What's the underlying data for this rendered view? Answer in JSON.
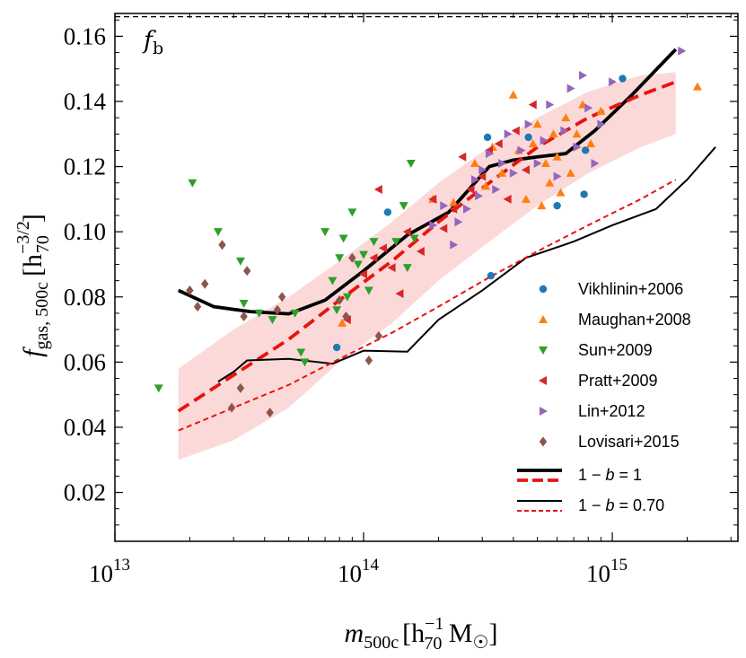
{
  "chart_data": {
    "type": "scatter",
    "xlabel": {
      "main": "m",
      "sub": "500c",
      "unit": "[h",
      "unit_exp": "−1",
      "unit_sub": "70",
      "unit_tail": " M",
      "sun": "☉",
      "close": "]"
    },
    "ylabel": {
      "main": "f",
      "sub": "gas, 500c",
      "unit": "[h",
      "unit_exp": "−3/2",
      "unit_sub": "70",
      "close": "]"
    },
    "x_scale": "log",
    "xlim": [
      10000000000000.0,
      3200000000000000.0
    ],
    "ylim": [
      0.005,
      0.167
    ],
    "x_ticks": [
      {
        "value": 10000000000000.0,
        "base": "10",
        "exp": "13"
      },
      {
        "value": 100000000000000.0,
        "base": "10",
        "exp": "14"
      },
      {
        "value": 1000000000000000.0,
        "base": "10",
        "exp": "15"
      }
    ],
    "y_ticks": [
      {
        "value": 0.02,
        "label": "0.02"
      },
      {
        "value": 0.04,
        "label": "0.04"
      },
      {
        "value": 0.06,
        "label": "0.06"
      },
      {
        "value": 0.08,
        "label": "0.08"
      },
      {
        "value": 0.1,
        "label": "0.10"
      },
      {
        "value": 0.12,
        "label": "0.12"
      },
      {
        "value": 0.14,
        "label": "0.14"
      },
      {
        "value": 0.16,
        "label": "0.16"
      }
    ],
    "baryon_fraction": {
      "value": 0.166,
      "label": "f",
      "label_sub": "b"
    },
    "band": {
      "color": "#fcd9d9",
      "upper": [
        [
          18000000000000.0,
          0.058
        ],
        [
          30000000000000.0,
          0.07
        ],
        [
          50000000000000.0,
          0.08
        ],
        [
          80000000000000.0,
          0.091
        ],
        [
          130000000000000.0,
          0.103
        ],
        [
          200000000000000.0,
          0.115
        ],
        [
          320000000000000.0,
          0.126
        ],
        [
          500000000000000.0,
          0.135
        ],
        [
          800000000000000.0,
          0.143
        ],
        [
          1300000000000000.0,
          0.148
        ],
        [
          1800000000000000.0,
          0.149
        ]
      ],
      "lower": [
        [
          18000000000000.0,
          0.03
        ],
        [
          30000000000000.0,
          0.036
        ],
        [
          50000000000000.0,
          0.046
        ],
        [
          80000000000000.0,
          0.06
        ],
        [
          130000000000000.0,
          0.072
        ],
        [
          200000000000000.0,
          0.085
        ],
        [
          320000000000000.0,
          0.097
        ],
        [
          500000000000000.0,
          0.108
        ],
        [
          800000000000000.0,
          0.118
        ],
        [
          1300000000000000.0,
          0.126
        ],
        [
          1800000000000000.0,
          0.13
        ]
      ]
    },
    "series": [
      {
        "name": "Vikhlinin+2006",
        "color": "#1f77b4",
        "marker": "circle",
        "points": [
          [
            78000000000000.0,
            0.0645
          ],
          [
            125000000000000.0,
            0.106
          ],
          [
            315000000000000.0,
            0.129
          ],
          [
            325000000000000.0,
            0.0865
          ],
          [
            460000000000000.0,
            0.129
          ],
          [
            600000000000000.0,
            0.108
          ],
          [
            780000000000000.0,
            0.125
          ],
          [
            770000000000000.0,
            0.1115
          ],
          [
            1100000000000000.0,
            0.147
          ]
        ]
      },
      {
        "name": "Maughan+2008",
        "color": "#ff7f0e",
        "marker": "triangle-up",
        "points": [
          [
            82000000000000.0,
            0.072
          ],
          [
            190000000000000.0,
            0.11
          ],
          [
            230000000000000.0,
            0.109
          ],
          [
            280000000000000.0,
            0.121
          ],
          [
            310000000000000.0,
            0.114
          ],
          [
            330000000000000.0,
            0.126
          ],
          [
            360000000000000.0,
            0.118
          ],
          [
            400000000000000.0,
            0.142
          ],
          [
            420000000000000.0,
            0.125
          ],
          [
            450000000000000.0,
            0.11
          ],
          [
            480000000000000.0,
            0.127
          ],
          [
            500000000000000.0,
            0.133
          ],
          [
            520000000000000.0,
            0.108
          ],
          [
            540000000000000.0,
            0.121
          ],
          [
            560000000000000.0,
            0.115
          ],
          [
            580000000000000.0,
            0.13
          ],
          [
            600000000000000.0,
            0.123
          ],
          [
            620000000000000.0,
            0.112
          ],
          [
            650000000000000.0,
            0.135
          ],
          [
            680000000000000.0,
            0.118
          ],
          [
            720000000000000.0,
            0.13
          ],
          [
            760000000000000.0,
            0.139
          ],
          [
            820000000000000.0,
            0.127
          ],
          [
            900000000000000.0,
            0.137
          ],
          [
            2200000000000000.0,
            0.1445
          ]
        ]
      },
      {
        "name": "Sun+2009",
        "color": "#2ca02c",
        "marker": "triangle-down",
        "points": [
          [
            15000000000000.0,
            0.052
          ],
          [
            20500000000000.0,
            0.115
          ],
          [
            26000000000000.0,
            0.1
          ],
          [
            32000000000000.0,
            0.091
          ],
          [
            33000000000000.0,
            0.078
          ],
          [
            38000000000000.0,
            0.075
          ],
          [
            43000000000000.0,
            0.073
          ],
          [
            53000000000000.0,
            0.075
          ],
          [
            56000000000000.0,
            0.063
          ],
          [
            58000000000000.0,
            0.06
          ],
          [
            70000000000000.0,
            0.1
          ],
          [
            75000000000000.0,
            0.085
          ],
          [
            78000000000000.0,
            0.076
          ],
          [
            80000000000000.0,
            0.092
          ],
          [
            83000000000000.0,
            0.098
          ],
          [
            86000000000000.0,
            0.08
          ],
          [
            90000000000000.0,
            0.106
          ],
          [
            95000000000000.0,
            0.09
          ],
          [
            100000000000000.0,
            0.093
          ],
          [
            105000000000000.0,
            0.082
          ],
          [
            110000000000000.0,
            0.097
          ],
          [
            135000000000000.0,
            0.097
          ],
          [
            145000000000000.0,
            0.108
          ],
          [
            150000000000000.0,
            0.089
          ],
          [
            155000000000000.0,
            0.121
          ],
          [
            160000000000000.0,
            0.098
          ]
        ]
      },
      {
        "name": "Pratt+2009",
        "color": "#d62728",
        "marker": "triangle-left",
        "points": [
          [
            86000000000000.0,
            0.073
          ],
          [
            100000000000000.0,
            0.087
          ],
          [
            110000000000000.0,
            0.092
          ],
          [
            115000000000000.0,
            0.113
          ],
          [
            120000000000000.0,
            0.095
          ],
          [
            130000000000000.0,
            0.089
          ],
          [
            140000000000000.0,
            0.081
          ],
          [
            150000000000000.0,
            0.1
          ],
          [
            170000000000000.0,
            0.094
          ],
          [
            190000000000000.0,
            0.11
          ],
          [
            210000000000000.0,
            0.101
          ],
          [
            230000000000000.0,
            0.107
          ],
          [
            250000000000000.0,
            0.123
          ],
          [
            270000000000000.0,
            0.113
          ],
          [
            300000000000000.0,
            0.117
          ],
          [
            320000000000000.0,
            0.125
          ],
          [
            350000000000000.0,
            0.127
          ],
          [
            380000000000000.0,
            0.11
          ],
          [
            410000000000000.0,
            0.131
          ],
          [
            450000000000000.0,
            0.119
          ],
          [
            480000000000000.0,
            0.139
          ]
        ]
      },
      {
        "name": "Lin+2012",
        "color": "#9467bd",
        "marker": "triangle-right",
        "points": [
          [
            190000000000000.0,
            0.102
          ],
          [
            210000000000000.0,
            0.108
          ],
          [
            230000000000000.0,
            0.096
          ],
          [
            240000000000000.0,
            0.103
          ],
          [
            260000000000000.0,
            0.107
          ],
          [
            280000000000000.0,
            0.116
          ],
          [
            290000000000000.0,
            0.111
          ],
          [
            300000000000000.0,
            0.119
          ],
          [
            320000000000000.0,
            0.124
          ],
          [
            340000000000000.0,
            0.113
          ],
          [
            360000000000000.0,
            0.121
          ],
          [
            380000000000000.0,
            0.13
          ],
          [
            400000000000000.0,
            0.118
          ],
          [
            430000000000000.0,
            0.125
          ],
          [
            460000000000000.0,
            0.133
          ],
          [
            500000000000000.0,
            0.121
          ],
          [
            530000000000000.0,
            0.128
          ],
          [
            560000000000000.0,
            0.139
          ],
          [
            600000000000000.0,
            0.117
          ],
          [
            640000000000000.0,
            0.131
          ],
          [
            680000000000000.0,
            0.144
          ],
          [
            720000000000000.0,
            0.126
          ],
          [
            760000000000000.0,
            0.148
          ],
          [
            800000000000000.0,
            0.138
          ],
          [
            850000000000000.0,
            0.121
          ],
          [
            900000000000000.0,
            0.133
          ],
          [
            1000000000000000.0,
            0.146
          ],
          [
            1900000000000000.0,
            0.1555
          ]
        ]
      },
      {
        "name": "Lovisari+2015",
        "color": "#8c564b",
        "marker": "diamond",
        "points": [
          [
            20000000000000.0,
            0.082
          ],
          [
            21500000000000.0,
            0.077
          ],
          [
            23000000000000.0,
            0.084
          ],
          [
            27000000000000.0,
            0.096
          ],
          [
            29500000000000.0,
            0.046
          ],
          [
            32000000000000.0,
            0.052
          ],
          [
            33000000000000.0,
            0.074
          ],
          [
            34000000000000.0,
            0.088
          ],
          [
            42000000000000.0,
            0.0445
          ],
          [
            45000000000000.0,
            0.076
          ],
          [
            47000000000000.0,
            0.08
          ],
          [
            80000000000000.0,
            0.079
          ],
          [
            85000000000000.0,
            0.074
          ],
          [
            90000000000000.0,
            0.092
          ],
          [
            105000000000000.0,
            0.0605
          ],
          [
            115000000000000.0,
            0.068
          ]
        ]
      }
    ],
    "lines": [
      {
        "name": "1-b=1 (simulation median)",
        "color": "#000000",
        "width": 3.8,
        "dash": "",
        "points": [
          [
            18000000000000.0,
            0.082
          ],
          [
            25000000000000.0,
            0.077
          ],
          [
            35000000000000.0,
            0.0755
          ],
          [
            50000000000000.0,
            0.0748
          ],
          [
            70000000000000.0,
            0.079
          ],
          [
            100000000000000.0,
            0.088
          ],
          [
            150000000000000.0,
            0.099
          ],
          [
            220000000000000.0,
            0.106
          ],
          [
            320000000000000.0,
            0.12
          ],
          [
            400000000000000.0,
            0.122
          ],
          [
            500000000000000.0,
            0.123
          ],
          [
            650000000000000.0,
            0.124
          ],
          [
            850000000000000.0,
            0.131
          ],
          [
            1200000000000000.0,
            0.142
          ],
          [
            1800000000000000.0,
            0.156
          ]
        ]
      },
      {
        "name": "1-b=1 (fit)",
        "color": "#e8140f",
        "width": 3.8,
        "dash": "14,7",
        "points": [
          [
            18000000000000.0,
            0.045
          ],
          [
            30000000000000.0,
            0.056
          ],
          [
            50000000000000.0,
            0.067
          ],
          [
            80000000000000.0,
            0.079
          ],
          [
            130000000000000.0,
            0.091
          ],
          [
            200000000000000.0,
            0.103
          ],
          [
            320000000000000.0,
            0.115
          ],
          [
            500000000000000.0,
            0.126
          ],
          [
            800000000000000.0,
            0.135
          ],
          [
            1300000000000000.0,
            0.142
          ],
          [
            1800000000000000.0,
            0.146
          ]
        ]
      },
      {
        "name": "1-b=0.70 (simulation median)",
        "color": "#000000",
        "width": 2,
        "dash": "",
        "points": [
          [
            26000000000000.0,
            0.054
          ],
          [
            30000000000000.0,
            0.057
          ],
          [
            34000000000000.0,
            0.0605
          ],
          [
            50000000000000.0,
            0.061
          ],
          [
            75000000000000.0,
            0.0595
          ],
          [
            100000000000000.0,
            0.0635
          ],
          [
            150000000000000.0,
            0.0632
          ],
          [
            200000000000000.0,
            0.073
          ],
          [
            300000000000000.0,
            0.082
          ],
          [
            450000000000000.0,
            0.092
          ],
          [
            700000000000000.0,
            0.097
          ],
          [
            1000000000000000.0,
            0.102
          ],
          [
            1500000000000000.0,
            0.107
          ],
          [
            2000000000000000.0,
            0.116
          ],
          [
            2600000000000000.0,
            0.126
          ]
        ]
      },
      {
        "name": "1-b=0.70 (fit)",
        "color": "#e8140f",
        "width": 2,
        "dash": "6,4",
        "points": [
          [
            18000000000000.0,
            0.039
          ],
          [
            30000000000000.0,
            0.046
          ],
          [
            50000000000000.0,
            0.053
          ],
          [
            80000000000000.0,
            0.061
          ],
          [
            130000000000000.0,
            0.069
          ],
          [
            200000000000000.0,
            0.077
          ],
          [
            320000000000000.0,
            0.086
          ],
          [
            500000000000000.0,
            0.094
          ],
          [
            800000000000000.0,
            0.102
          ],
          [
            1300000000000000.0,
            0.11
          ],
          [
            1800000000000000.0,
            0.116
          ]
        ]
      }
    ],
    "legend": {
      "position": "lower-right",
      "entries": [
        {
          "label": "Vikhlinin+2006",
          "series": 0
        },
        {
          "label": "Maughan+2008",
          "series": 1
        },
        {
          "label": "Sun+2009",
          "series": 2
        },
        {
          "label": "Pratt+2009",
          "series": 3
        },
        {
          "label": "Lin+2012",
          "series": 4
        },
        {
          "label": "Lovisari+2015",
          "series": 5
        }
      ],
      "line_entries": [
        {
          "label_pre": "1 − ",
          "label_var": "b",
          "label_post": " = 1",
          "solid_width": 3.8,
          "dash_width": 3.8
        },
        {
          "label_pre": "1 − ",
          "label_var": "b",
          "label_post": " = 0.70",
          "solid_width": 2,
          "dash_width": 2
        }
      ]
    }
  }
}
